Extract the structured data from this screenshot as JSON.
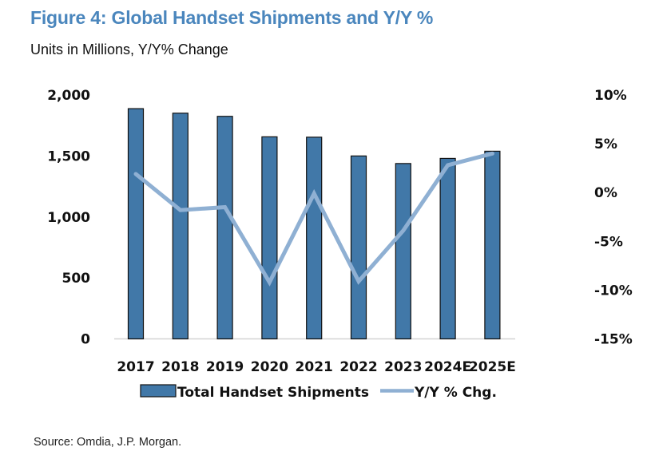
{
  "header": {
    "title": "Figure 4: Global Handset Shipments and Y/Y %",
    "subtitle": "Units in Millions, Y/Y% Change"
  },
  "footer": {
    "source": "Source: Omdia, J.P. Morgan."
  },
  "colors": {
    "title": "#4a86bd",
    "bar": "#4178a8",
    "bar_outline": "#111111",
    "line": "#8fb0d3"
  },
  "chart_data": {
    "type": "bar",
    "title": "Figure 4: Global Handset Shipments and Y/Y %",
    "subtitle": "Units in Millions, Y/Y% Change",
    "categories": [
      "2017",
      "2018",
      "2019",
      "2020",
      "2021",
      "2022",
      "2023",
      "2024E",
      "2025E"
    ],
    "series": [
      {
        "name": "Total Handset Shipments",
        "type": "bar",
        "axis": "left",
        "values": [
          1888,
          1851,
          1825,
          1657,
          1654,
          1500,
          1438,
          1480,
          1539
        ]
      },
      {
        "name": "Y/Y % Chg.",
        "type": "line",
        "axis": "right",
        "values": [
          1.9,
          -1.8,
          -1.5,
          -9.2,
          -0.1,
          -9.1,
          -3.9,
          2.8,
          4.0
        ]
      }
    ],
    "y_left": {
      "ylim": [
        0,
        2000
      ],
      "ticks": [
        0,
        500,
        1000,
        1500,
        2000
      ],
      "tick_labels": [
        "0",
        "500",
        "1,000",
        "1,500",
        "2,000"
      ]
    },
    "y_right": {
      "ylim": [
        -15,
        10
      ],
      "ticks": [
        -15,
        -10,
        -5,
        0,
        5,
        10
      ],
      "tick_labels": [
        "-15%",
        "-10%",
        "-5%",
        "0%",
        "5%",
        "10%"
      ]
    },
    "xlabel": "",
    "ylabel": "",
    "grid": false,
    "legend": {
      "position": "bottom",
      "entries": [
        "Total Handset Shipments",
        "Y/Y % Chg."
      ]
    },
    "source": "Source: Omdia, J.P. Morgan."
  }
}
